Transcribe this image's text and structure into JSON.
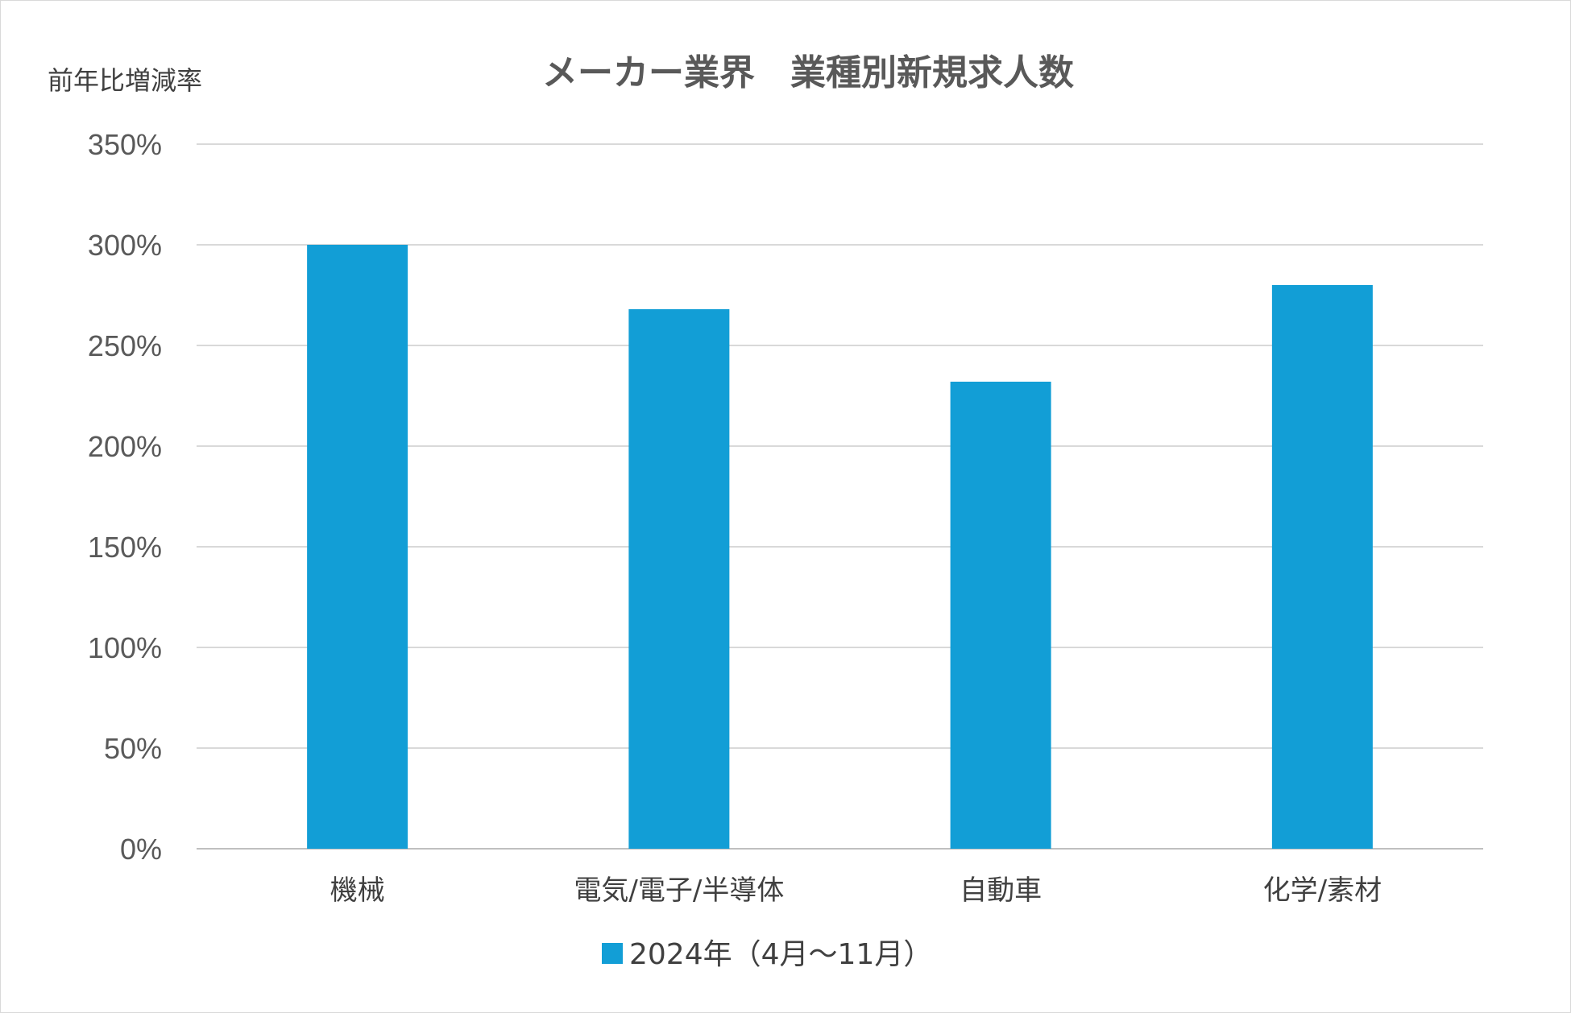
{
  "chart_data": {
    "type": "bar",
    "title": "メーカー業界　業種別新規求人数",
    "ylabel": "前年比増減率",
    "xlabel": "",
    "categories": [
      "機械",
      "電気/電子/半導体",
      "自動車",
      "化学/素材"
    ],
    "series": [
      {
        "name": "2024年（4月～11月）",
        "values": [
          300,
          268,
          232,
          280
        ],
        "color": "#129ed6"
      }
    ],
    "ylim": [
      0,
      350
    ],
    "yticks": [
      0,
      50,
      100,
      150,
      200,
      250,
      300,
      350
    ],
    "ytick_labels": [
      "0%",
      "50%",
      "100%",
      "150%",
      "200%",
      "250%",
      "300%",
      "350%"
    ],
    "grid": true,
    "legend_position": "bottom-center"
  }
}
